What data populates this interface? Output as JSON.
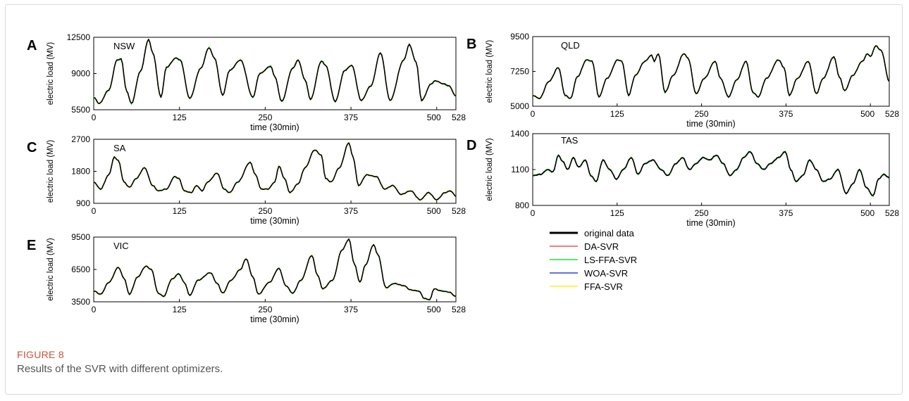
{
  "caption": {
    "label": "FIGURE 8",
    "text": "Results of the SVR with different optimizers."
  },
  "legend": {
    "entries": [
      {
        "name": "original data",
        "color": "#000000"
      },
      {
        "name": "DA-SVR",
        "color": "#ff4d4d"
      },
      {
        "name": "LS-FFA-SVR",
        "color": "#22dd44"
      },
      {
        "name": "WOA-SVR",
        "color": "#3344cc"
      },
      {
        "name": "FFA-SVR",
        "color": "#ffee22"
      }
    ]
  },
  "chart_data": [
    {
      "panel": "A",
      "type": "line",
      "region": "NSW",
      "xlabel": "time (30min)",
      "ylabel": "electric load (MV)",
      "xlim": [
        0,
        528
      ],
      "ylim": [
        5500,
        12500
      ],
      "xticks": [
        0,
        125,
        250,
        375,
        500,
        528
      ],
      "yticks": [
        5500,
        9000,
        12500
      ],
      "original": [
        [
          0,
          6700
        ],
        [
          8,
          6100
        ],
        [
          22,
          7400
        ],
        [
          34,
          10300
        ],
        [
          40,
          10400
        ],
        [
          48,
          7300
        ],
        [
          55,
          6100
        ],
        [
          68,
          9200
        ],
        [
          80,
          12300
        ],
        [
          86,
          11000
        ],
        [
          98,
          6700
        ],
        [
          106,
          9600
        ],
        [
          120,
          10500
        ],
        [
          126,
          10300
        ],
        [
          140,
          6600
        ],
        [
          156,
          9500
        ],
        [
          168,
          11500
        ],
        [
          176,
          10500
        ],
        [
          188,
          6900
        ],
        [
          198,
          9300
        ],
        [
          214,
          10300
        ],
        [
          232,
          6700
        ],
        [
          242,
          9000
        ],
        [
          258,
          9700
        ],
        [
          264,
          8700
        ],
        [
          274,
          6300
        ],
        [
          290,
          9500
        ],
        [
          298,
          10300
        ],
        [
          308,
          8400
        ],
        [
          316,
          6500
        ],
        [
          332,
          10200
        ],
        [
          338,
          9800
        ],
        [
          352,
          6300
        ],
        [
          366,
          9300
        ],
        [
          376,
          9800
        ],
        [
          390,
          6400
        ],
        [
          404,
          7800
        ],
        [
          418,
          11000
        ],
        [
          432,
          6400
        ],
        [
          452,
          10300
        ],
        [
          460,
          11800
        ],
        [
          470,
          10100
        ],
        [
          478,
          6400
        ],
        [
          492,
          8000
        ],
        [
          498,
          8300
        ],
        [
          510,
          8000
        ],
        [
          518,
          7800
        ],
        [
          528,
          6800
        ]
      ],
      "series": [
        {
          "name": "LS-FFA-SVR",
          "color": "#22dd44"
        },
        {
          "name": "FFA-SVR",
          "color": "#ffee22"
        }
      ]
    },
    {
      "panel": "B",
      "type": "line",
      "region": "QLD",
      "xlabel": "time (30min)",
      "ylabel": "electric load (MV)",
      "xlim": [
        0,
        528
      ],
      "ylim": [
        5000,
        9500
      ],
      "xticks": [
        0,
        125,
        250,
        375,
        500,
        528
      ],
      "yticks": [
        5000,
        7250,
        9500
      ],
      "original": [
        [
          0,
          5700
        ],
        [
          10,
          5500
        ],
        [
          24,
          6600
        ],
        [
          38,
          7500
        ],
        [
          48,
          5700
        ],
        [
          56,
          5500
        ],
        [
          66,
          6900
        ],
        [
          80,
          8000
        ],
        [
          88,
          7900
        ],
        [
          98,
          5600
        ],
        [
          110,
          6800
        ],
        [
          126,
          8000
        ],
        [
          132,
          7900
        ],
        [
          142,
          5700
        ],
        [
          152,
          7000
        ],
        [
          166,
          7900
        ],
        [
          176,
          8300
        ],
        [
          180,
          7900
        ],
        [
          186,
          8400
        ],
        [
          196,
          5900
        ],
        [
          208,
          7000
        ],
        [
          224,
          8400
        ],
        [
          230,
          8100
        ],
        [
          242,
          5800
        ],
        [
          254,
          6800
        ],
        [
          270,
          7900
        ],
        [
          278,
          6800
        ],
        [
          290,
          5600
        ],
        [
          302,
          6700
        ],
        [
          316,
          7900
        ],
        [
          326,
          5900
        ],
        [
          334,
          5600
        ],
        [
          346,
          6800
        ],
        [
          364,
          8000
        ],
        [
          372,
          7500
        ],
        [
          380,
          5700
        ],
        [
          392,
          6800
        ],
        [
          408,
          7900
        ],
        [
          420,
          5800
        ],
        [
          430,
          6800
        ],
        [
          446,
          8200
        ],
        [
          454,
          6900
        ],
        [
          462,
          6000
        ],
        [
          474,
          7000
        ],
        [
          488,
          7900
        ],
        [
          496,
          8400
        ],
        [
          500,
          8200
        ],
        [
          508,
          8900
        ],
        [
          516,
          8600
        ],
        [
          528,
          6600
        ]
      ],
      "series": [
        {
          "name": "LS-FFA-SVR",
          "color": "#22dd44"
        },
        {
          "name": "FFA-SVR",
          "color": "#ffee22"
        }
      ]
    },
    {
      "panel": "C",
      "type": "line",
      "region": "SA",
      "xlabel": "time (30min)",
      "ylabel": "electric load (MV)",
      "xlim": [
        0,
        528
      ],
      "ylim": [
        900,
        2700
      ],
      "xticks": [
        0,
        125,
        250,
        375,
        500,
        528
      ],
      "yticks": [
        900,
        1800,
        2700
      ],
      "original": [
        [
          0,
          1500
        ],
        [
          10,
          1300
        ],
        [
          22,
          1700
        ],
        [
          30,
          2200
        ],
        [
          36,
          2100
        ],
        [
          44,
          1500
        ],
        [
          52,
          1350
        ],
        [
          62,
          1600
        ],
        [
          74,
          1900
        ],
        [
          86,
          1400
        ],
        [
          94,
          1250
        ],
        [
          106,
          1300
        ],
        [
          118,
          1650
        ],
        [
          124,
          1600
        ],
        [
          132,
          1250
        ],
        [
          142,
          1200
        ],
        [
          150,
          1400
        ],
        [
          158,
          1250
        ],
        [
          166,
          1500
        ],
        [
          180,
          1750
        ],
        [
          190,
          1300
        ],
        [
          198,
          1200
        ],
        [
          210,
          1500
        ],
        [
          228,
          2050
        ],
        [
          236,
          1700
        ],
        [
          244,
          1300
        ],
        [
          254,
          1300
        ],
        [
          264,
          1500
        ],
        [
          270,
          1950
        ],
        [
          278,
          1600
        ],
        [
          286,
          1200
        ],
        [
          298,
          1450
        ],
        [
          308,
          1900
        ],
        [
          322,
          2400
        ],
        [
          332,
          2250
        ],
        [
          338,
          1600
        ],
        [
          346,
          1500
        ],
        [
          358,
          1900
        ],
        [
          372,
          2600
        ],
        [
          378,
          2200
        ],
        [
          386,
          1400
        ],
        [
          398,
          1700
        ],
        [
          412,
          1650
        ],
        [
          424,
          1300
        ],
        [
          436,
          1400
        ],
        [
          448,
          1150
        ],
        [
          462,
          1250
        ],
        [
          476,
          1000
        ],
        [
          488,
          1200
        ],
        [
          500,
          1000
        ],
        [
          512,
          1200
        ],
        [
          520,
          1250
        ],
        [
          528,
          1100
        ]
      ],
      "series": [
        {
          "name": "LS-FFA-SVR",
          "color": "#22dd44"
        },
        {
          "name": "FFA-SVR",
          "color": "#ffee22"
        }
      ]
    },
    {
      "panel": "D",
      "type": "line",
      "region": "TAS",
      "xlabel": "time (30min)",
      "ylabel": "electric load (MV)",
      "xlim": [
        0,
        528
      ],
      "ylim": [
        800,
        1400
      ],
      "xticks": [
        0,
        125,
        250,
        375,
        500,
        528
      ],
      "yticks": [
        800,
        1100,
        1400
      ],
      "original": [
        [
          0,
          1050
        ],
        [
          12,
          1060
        ],
        [
          22,
          1100
        ],
        [
          30,
          1080
        ],
        [
          38,
          1220
        ],
        [
          44,
          1170
        ],
        [
          52,
          1100
        ],
        [
          60,
          1200
        ],
        [
          68,
          1120
        ],
        [
          78,
          1180
        ],
        [
          86,
          1050
        ],
        [
          94,
          1000
        ],
        [
          104,
          1180
        ],
        [
          114,
          1100
        ],
        [
          124,
          1020
        ],
        [
          134,
          1100
        ],
        [
          146,
          1200
        ],
        [
          156,
          1060
        ],
        [
          166,
          1150
        ],
        [
          178,
          1180
        ],
        [
          190,
          1100
        ],
        [
          200,
          1050
        ],
        [
          212,
          1150
        ],
        [
          222,
          1200
        ],
        [
          232,
          1100
        ],
        [
          242,
          1150
        ],
        [
          252,
          1200
        ],
        [
          262,
          1180
        ],
        [
          272,
          1220
        ],
        [
          282,
          1150
        ],
        [
          292,
          1050
        ],
        [
          302,
          1100
        ],
        [
          312,
          1200
        ],
        [
          322,
          1250
        ],
        [
          332,
          1150
        ],
        [
          342,
          1100
        ],
        [
          352,
          1150
        ],
        [
          364,
          1200
        ],
        [
          374,
          1250
        ],
        [
          382,
          1100
        ],
        [
          390,
          1000
        ],
        [
          400,
          1050
        ],
        [
          410,
          1180
        ],
        [
          420,
          1100
        ],
        [
          430,
          1000
        ],
        [
          440,
          1020
        ],
        [
          452,
          1100
        ],
        [
          464,
          900
        ],
        [
          474,
          980
        ],
        [
          484,
          1100
        ],
        [
          494,
          950
        ],
        [
          504,
          880
        ],
        [
          512,
          1020
        ],
        [
          520,
          1060
        ],
        [
          528,
          1030
        ]
      ],
      "series": [
        {
          "name": "FFA-SVR",
          "color": "#ffee22"
        },
        {
          "name": "WOA-SVR",
          "color": "#3344cc"
        },
        {
          "name": "LS-FFA-SVR",
          "color": "#22dd44"
        }
      ]
    },
    {
      "panel": "E",
      "type": "line",
      "region": "VIC",
      "xlabel": "time (30min)",
      "ylabel": "electric load (MV)",
      "xlim": [
        0,
        528
      ],
      "ylim": [
        3500,
        9500
      ],
      "xticks": [
        0,
        125,
        250,
        375,
        500,
        528
      ],
      "yticks": [
        3500,
        6500,
        9500
      ],
      "original": [
        [
          0,
          4500
        ],
        [
          10,
          4200
        ],
        [
          22,
          5300
        ],
        [
          36,
          6700
        ],
        [
          44,
          5700
        ],
        [
          52,
          4200
        ],
        [
          64,
          5800
        ],
        [
          76,
          6800
        ],
        [
          84,
          6500
        ],
        [
          94,
          4300
        ],
        [
          102,
          4000
        ],
        [
          114,
          5600
        ],
        [
          124,
          6100
        ],
        [
          132,
          5300
        ],
        [
          140,
          4100
        ],
        [
          152,
          5500
        ],
        [
          170,
          6200
        ],
        [
          180,
          5200
        ],
        [
          188,
          4300
        ],
        [
          200,
          5500
        ],
        [
          214,
          6500
        ],
        [
          222,
          7500
        ],
        [
          232,
          5800
        ],
        [
          240,
          4200
        ],
        [
          256,
          5300
        ],
        [
          270,
          6600
        ],
        [
          280,
          5000
        ],
        [
          290,
          4300
        ],
        [
          302,
          5500
        ],
        [
          318,
          7800
        ],
        [
          326,
          6000
        ],
        [
          334,
          4700
        ],
        [
          348,
          5500
        ],
        [
          362,
          8300
        ],
        [
          372,
          9300
        ],
        [
          380,
          7000
        ],
        [
          388,
          5300
        ],
        [
          396,
          6900
        ],
        [
          408,
          8800
        ],
        [
          414,
          7900
        ],
        [
          426,
          4800
        ],
        [
          438,
          5200
        ],
        [
          452,
          5000
        ],
        [
          462,
          4600
        ],
        [
          474,
          4500
        ],
        [
          482,
          3800
        ],
        [
          490,
          3700
        ],
        [
          496,
          4700
        ],
        [
          508,
          4500
        ],
        [
          518,
          4400
        ],
        [
          528,
          4000
        ]
      ],
      "series": [
        {
          "name": "LS-FFA-SVR",
          "color": "#22dd44"
        },
        {
          "name": "FFA-SVR",
          "color": "#ffee22"
        }
      ]
    }
  ]
}
